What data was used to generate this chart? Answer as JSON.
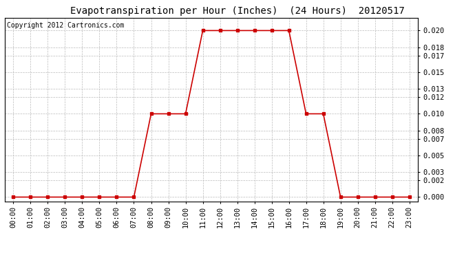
{
  "title": "Evapotranspiration per Hour (Inches)  (24 Hours)  20120517",
  "copyright": "Copyright 2012 Cartronics.com",
  "hours": [
    "00:00",
    "01:00",
    "02:00",
    "03:00",
    "04:00",
    "05:00",
    "06:00",
    "07:00",
    "08:00",
    "09:00",
    "10:00",
    "11:00",
    "12:00",
    "13:00",
    "14:00",
    "15:00",
    "16:00",
    "17:00",
    "18:00",
    "19:00",
    "20:00",
    "21:00",
    "22:00",
    "23:00"
  ],
  "values": [
    0.0,
    0.0,
    0.0,
    0.0,
    0.0,
    0.0,
    0.0,
    0.0,
    0.01,
    0.01,
    0.01,
    0.02,
    0.02,
    0.02,
    0.02,
    0.02,
    0.02,
    0.01,
    0.01,
    0.0,
    0.0,
    0.0,
    0.0,
    0.0
  ],
  "line_color": "#cc0000",
  "marker": "s",
  "marker_size": 3,
  "bg_color": "#ffffff",
  "plot_bg_color": "#ffffff",
  "grid_color": "#bbbbbb",
  "yticks": [
    0.0,
    0.002,
    0.003,
    0.005,
    0.007,
    0.008,
    0.01,
    0.012,
    0.013,
    0.015,
    0.017,
    0.018,
    0.02
  ],
  "ylim": [
    -0.0005,
    0.0215
  ],
  "title_fontsize": 10,
  "copyright_fontsize": 7,
  "tick_fontsize": 7.5
}
